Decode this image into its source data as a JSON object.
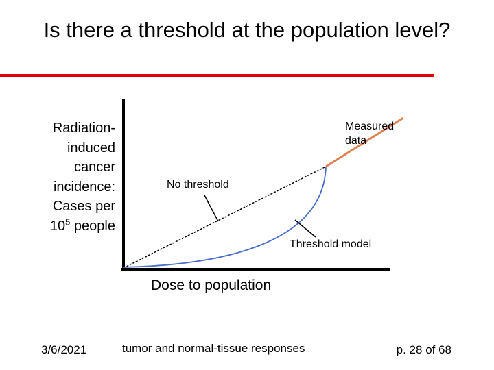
{
  "title": "Is there a threshold at the population level?",
  "y_label": {
    "lines": [
      "Radiation-",
      "induced",
      "cancer",
      "incidence:",
      "Cases per"
    ],
    "last_line": {
      "before": "10",
      "superscript": "5",
      "after": " people"
    }
  },
  "x_label": "Dose to population",
  "annotations": {
    "measured": "Measured data",
    "no_threshold": "No threshold",
    "threshold_model": "Threshold model"
  },
  "footer": {
    "date": "3/6/2021",
    "center": "tumor and normal-tissue responses",
    "page": "p. 28 of 68"
  }
}
